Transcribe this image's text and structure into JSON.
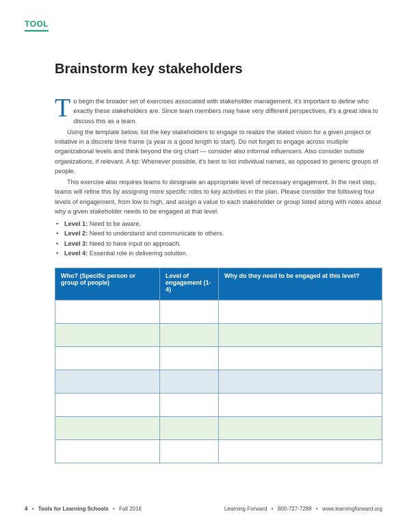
{
  "category": "TOOL",
  "title": "Brainstorm key stakeholders",
  "paragraphs": {
    "p1_first": "T",
    "p1_rest": "o begin the broader set of exercises associated with stakeholder management, it's important to define who exactly these stakeholders are. Since team members may have very different perspectives, it's a great idea to discuss this as a team.",
    "p2": "Using the template below, list the key stakeholders to engage to realize the stated vision for a given project or initiative in a discrete time frame (a year is a good length to start). Do not forget to engage across multiple organizational levels and think beyond the org chart — consider also informal influencers. Also consider outside organizations, if relevant. A tip: Whenever possible, it's best to list individual names, as opposed to generic groups of people.",
    "p3": "This exercise also requires teams to designate an appropriate level of necessary engagement. In the next step, teams will refine this by assigning more specific roles to key activities in the plan. Please consider the following four levels of engagement, from low to high, and assign a value to each stakeholder or group listed along with notes about why a given stakeholder needs to be engaged at that level."
  },
  "levels": [
    {
      "label": "Level 1:",
      "text": " Need to be aware."
    },
    {
      "label": "Level 2:",
      "text": " Need to understand and communicate to others."
    },
    {
      "label": "Level 3:",
      "text": " Need to have input on approach."
    },
    {
      "label": "Level 4:",
      "text": " Essential role in delivering solution."
    }
  ],
  "table": {
    "columns": [
      {
        "label": "Who? (Specific person or group of people)",
        "width": "32%"
      },
      {
        "label": "Level of engagement (1-4)",
        "width": "18%"
      },
      {
        "label": "Why do they need to be engaged at this level?",
        "width": "50%"
      }
    ],
    "row_styles": [
      "row-white",
      "row-green",
      "row-white",
      "row-blue",
      "row-white",
      "row-green",
      "row-white"
    ],
    "header_bg": "#0e6cb3",
    "header_fg": "#ffffff",
    "border_color": "#7fa8c8",
    "row_colors": {
      "white": "#ffffff",
      "green": "#e5f1e1",
      "blue": "#dde8ef"
    }
  },
  "footer": {
    "page_number": "4",
    "publication": "Tools for Learning Schools",
    "issue": "Fall 2016",
    "org": "Learning Forward",
    "phone": "800-727-7288",
    "url": "www.learningforward.org"
  },
  "colors": {
    "accent_green": "#1a9c7a",
    "dropcap_blue": "#1a6aa8",
    "text": "#444444",
    "title": "#222222"
  }
}
